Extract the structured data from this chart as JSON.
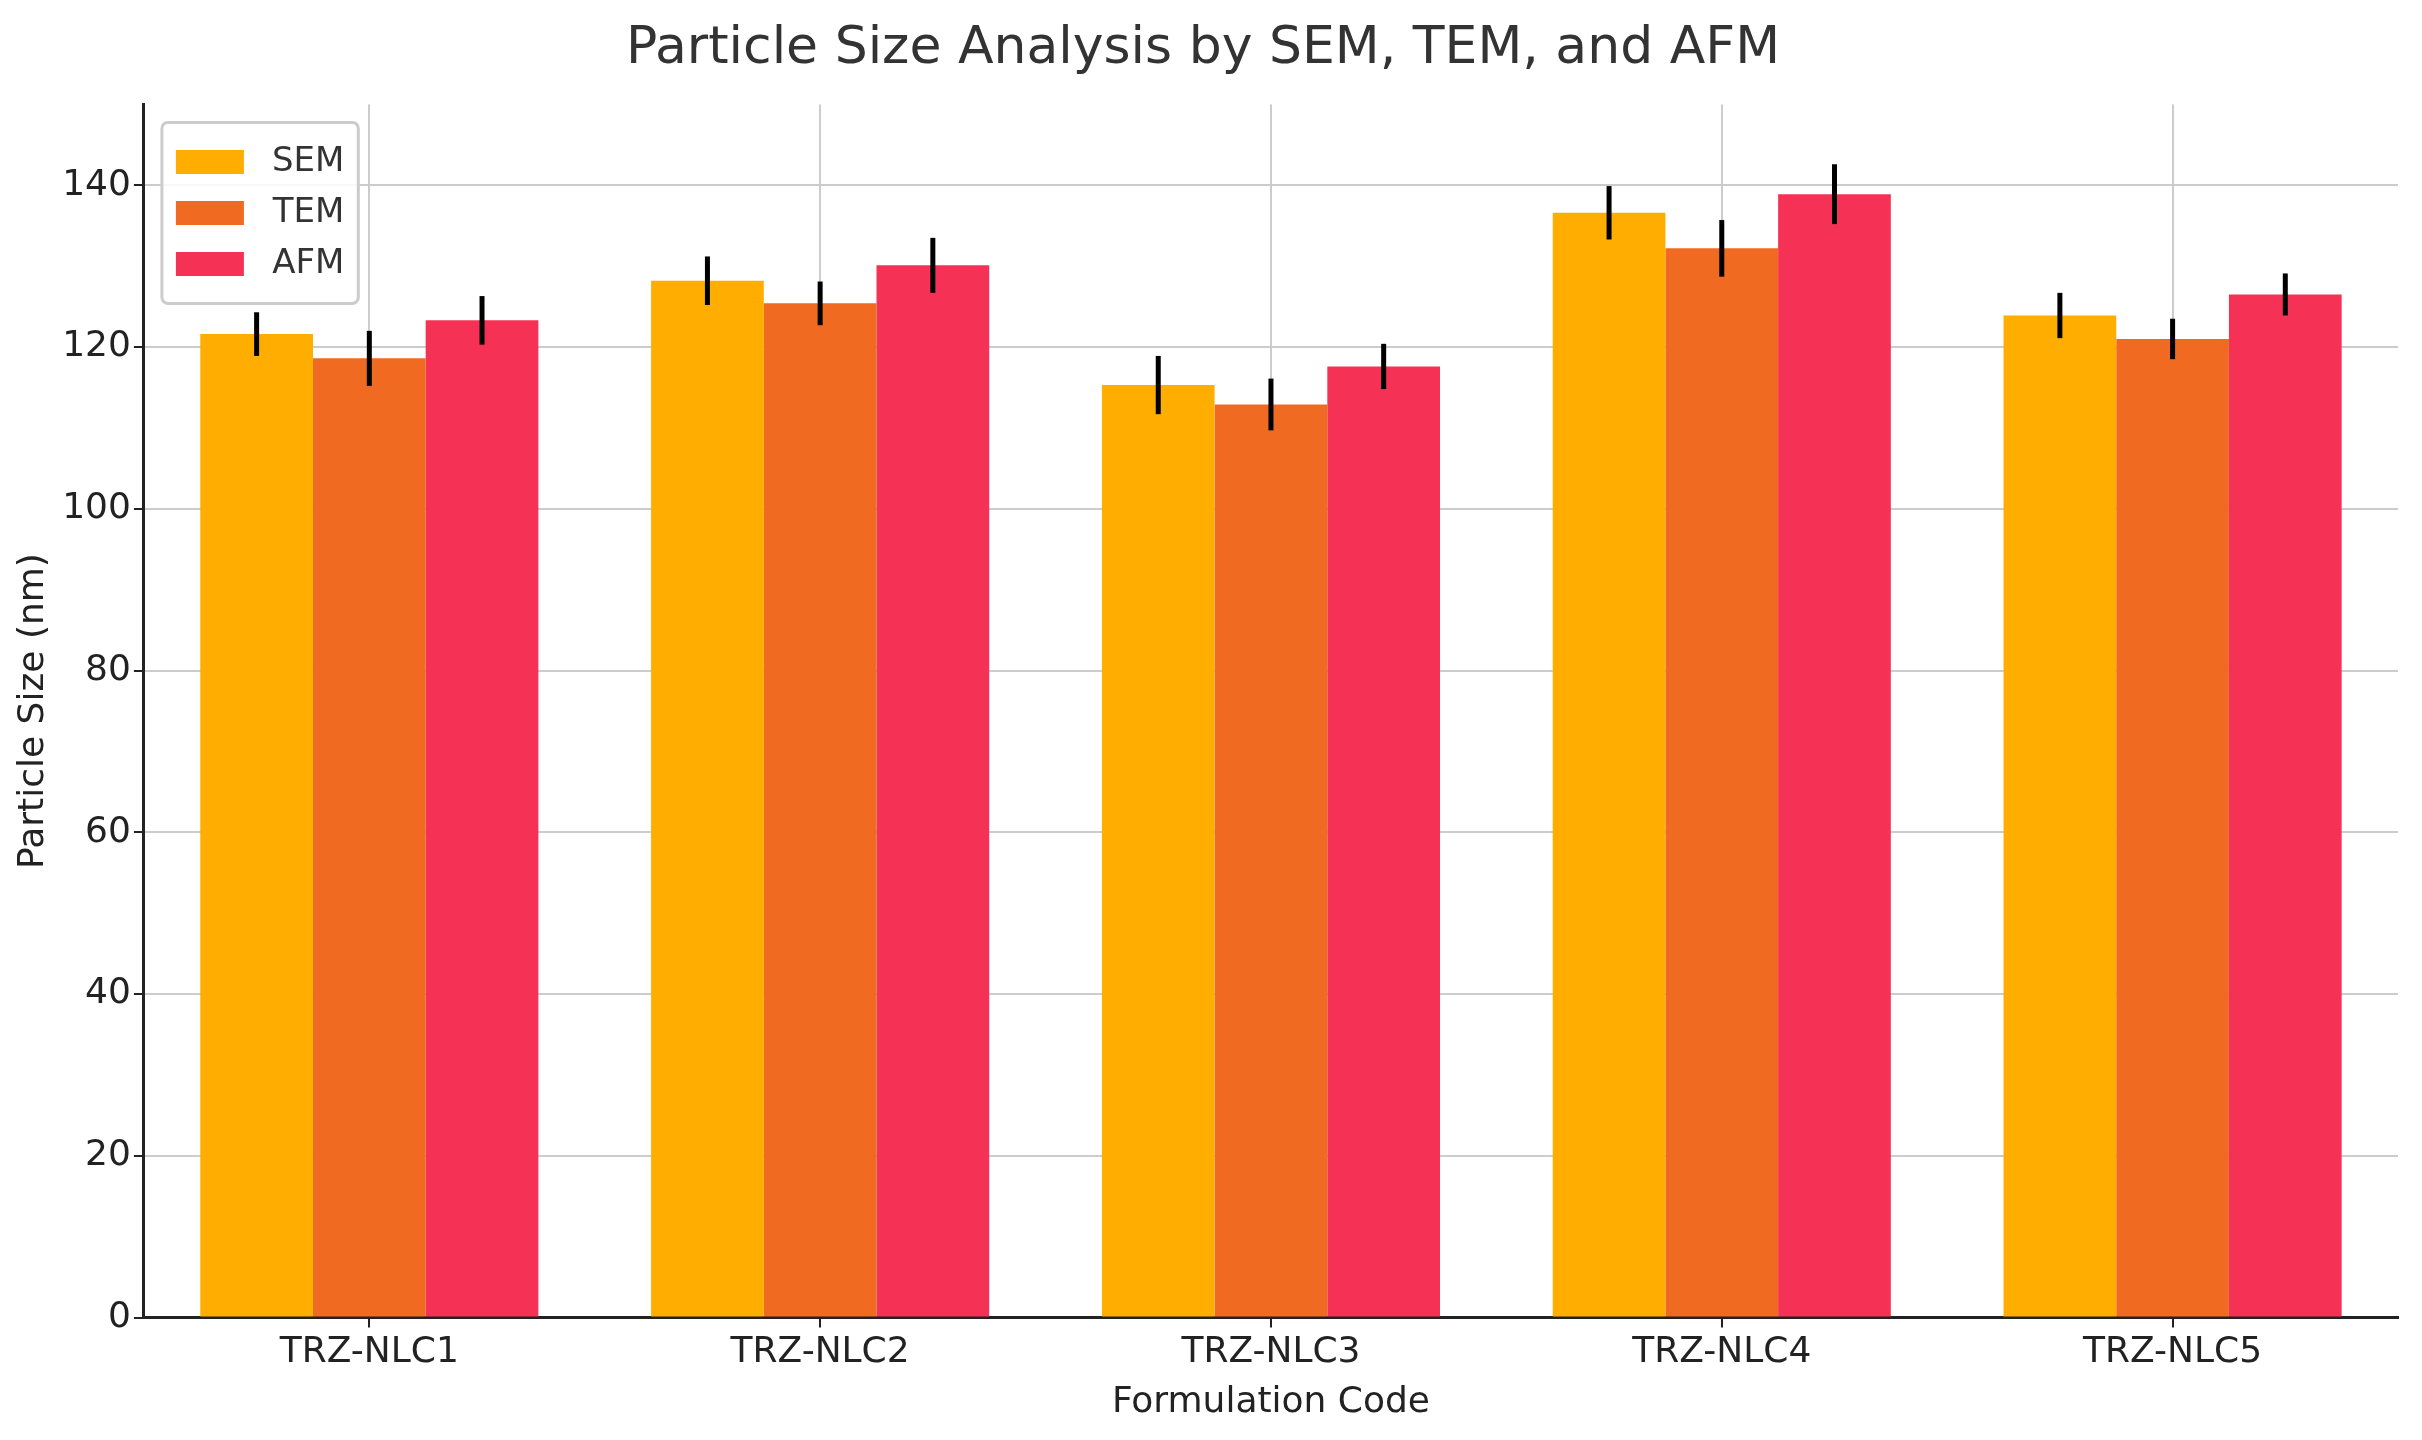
{
  "chart_data": {
    "type": "bar",
    "title": "Particle Size Analysis by SEM, TEM, and AFM",
    "xlabel": "Formulation Code",
    "ylabel": "Particle Size (nm)",
    "categories": [
      "TRZ-NLC1",
      "TRZ-NLC2",
      "TRZ-NLC3",
      "TRZ-NLC4",
      "TRZ-NLC5"
    ],
    "series": [
      {
        "name": "SEM",
        "color": "#ffae00",
        "values": [
          121.6,
          128.2,
          115.3,
          136.6,
          123.9
        ],
        "errors": [
          2.7,
          3,
          3.6,
          3.3,
          2.8
        ]
      },
      {
        "name": "TEM",
        "color": "#f06a22",
        "values": [
          118.6,
          125.4,
          112.9,
          132.2,
          121.0
        ],
        "errors": [
          3.4,
          2.7,
          3.2,
          3.5,
          2.5
        ]
      },
      {
        "name": "AFM",
        "color": "#f53255",
        "values": [
          123.3,
          130.1,
          117.6,
          138.9,
          126.5
        ],
        "errors": [
          3,
          3.4,
          2.8,
          3.7,
          2.6
        ]
      }
    ],
    "ylim": [
      0,
      150
    ],
    "yticks": [
      0,
      20,
      40,
      60,
      80,
      100,
      120,
      140
    ],
    "grid": true,
    "legend": "top left"
  }
}
